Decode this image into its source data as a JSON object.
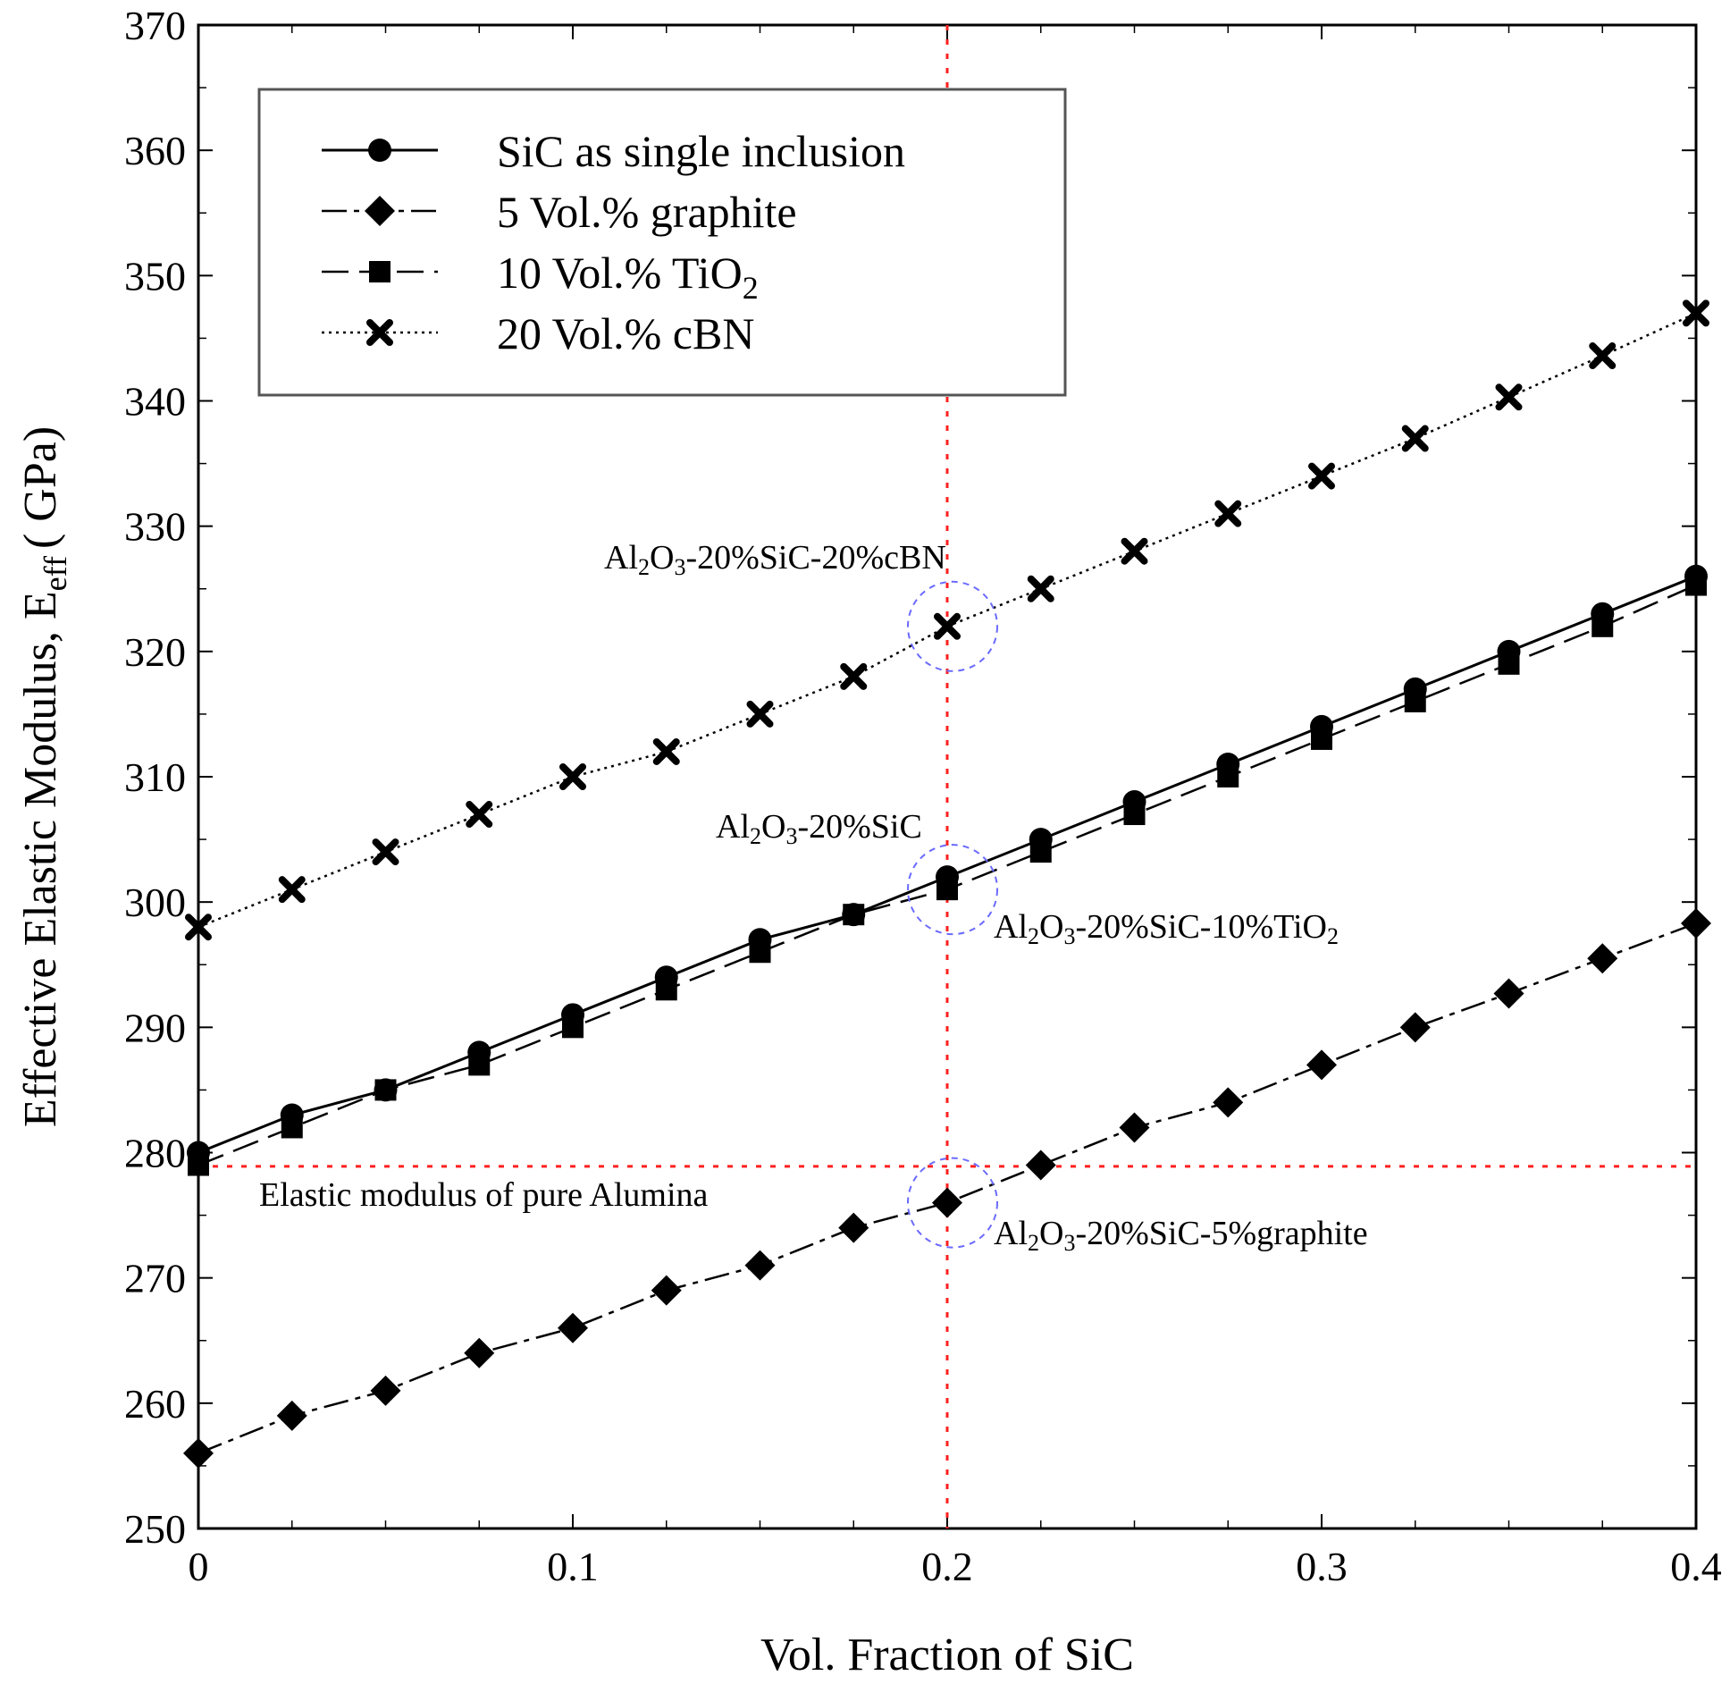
{
  "chart_data": {
    "type": "line",
    "title": "",
    "xlabel": "Vol. Fraction of SiC",
    "ylabel_main": "Effective Elastic Modulus, E",
    "ylabel_sub": "eff",
    "ylabel_unit": "( GPa)",
    "xlim": [
      0,
      0.4
    ],
    "ylim": [
      250,
      370
    ],
    "xticks": [
      0,
      0.1,
      0.2,
      0.3,
      0.4
    ],
    "xtick_labels": [
      "0",
      "0.1",
      "0.2",
      "0.3",
      "0.4"
    ],
    "yticks": [
      250,
      260,
      270,
      280,
      290,
      300,
      310,
      320,
      330,
      340,
      350,
      360,
      370
    ],
    "ytick_labels": [
      "250",
      "260",
      "270",
      "280",
      "290",
      "300",
      "310",
      "320",
      "330",
      "340",
      "350",
      "360",
      "370"
    ],
    "grid": false,
    "legend_position": "top-left",
    "x": [
      0,
      0.025,
      0.05,
      0.075,
      0.1,
      0.125,
      0.15,
      0.175,
      0.2,
      0.225,
      0.25,
      0.275,
      0.3,
      0.325,
      0.35,
      0.375,
      0.4
    ],
    "series": [
      {
        "name": "SiC as single inclusion",
        "legend_main": "SiC as single inclusion",
        "legend_sub": "",
        "marker": "circle",
        "dash": "solid",
        "values": [
          280,
          283,
          285,
          288,
          291,
          294,
          297,
          299,
          302,
          305,
          308,
          311,
          314,
          317,
          320,
          323,
          326
        ]
      },
      {
        "name": "5 Vol.% graphite",
        "legend_main": "5 Vol.% graphite",
        "legend_sub": "",
        "marker": "diamond",
        "dash": "dashdot",
        "values": [
          256,
          259,
          261,
          264,
          266,
          269,
          271,
          274,
          276,
          279,
          282,
          284,
          287,
          290,
          292.7,
          295.5,
          298.3
        ]
      },
      {
        "name": "10 Vol.% TiO2",
        "legend_main": "10 Vol.% TiO",
        "legend_sub": "2",
        "marker": "square",
        "dash": "longdash",
        "values": [
          279,
          282,
          285,
          287,
          290,
          293,
          296,
          299,
          301,
          304,
          307,
          310,
          313,
          316,
          319,
          322,
          325.3
        ]
      },
      {
        "name": "20 Vol.% cBN",
        "legend_main": "20 Vol.% cBN",
        "legend_sub": "",
        "marker": "x",
        "dash": "dotted",
        "values": [
          298,
          301,
          304,
          307,
          310,
          312,
          315,
          318,
          322,
          325,
          328,
          331,
          334,
          337,
          340.3,
          343.6,
          347
        ]
      }
    ],
    "reference_lines": {
      "vertical_x": 0.2,
      "horizontal_y": 278.9,
      "horizontal_label": "Elastic modulus of pure Alumina",
      "color": "#ff2020"
    },
    "annotations": [
      {
        "id": "cbn",
        "x": 0.2,
        "y": 322,
        "parts": [
          "Al",
          "2",
          "O",
          "3",
          "-20%SiC-20%cBN"
        ]
      },
      {
        "id": "sic",
        "x": 0.2,
        "y": 301,
        "parts": [
          "Al",
          "2",
          "O",
          "3",
          "-20%SiC"
        ]
      },
      {
        "id": "tio2",
        "x": 0.2,
        "y": 301,
        "parts": [
          "Al",
          "2",
          "O",
          "3",
          "-20%SiC-10%TiO",
          "2"
        ]
      },
      {
        "id": "graphite",
        "x": 0.2,
        "y": 276,
        "parts": [
          "Al",
          "2",
          "O",
          "3",
          "-20%SiC-5%graphite"
        ]
      }
    ],
    "highlight_circles": [
      {
        "x": 0.2,
        "y": 322
      },
      {
        "x": 0.2,
        "y": 301
      },
      {
        "x": 0.2,
        "y": 276
      }
    ],
    "highlight_color": "#6a6aff"
  }
}
